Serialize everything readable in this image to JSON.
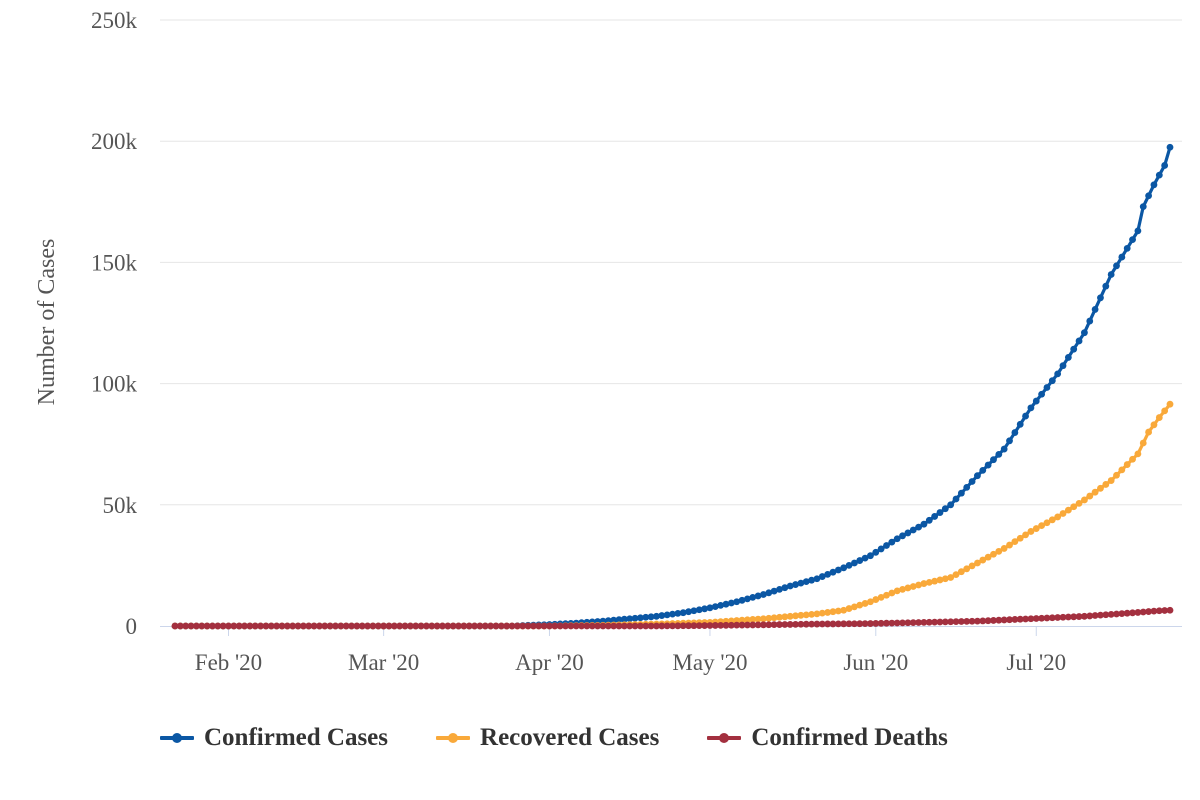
{
  "chart_data": {
    "type": "line",
    "title": "",
    "xlabel": "",
    "ylabel": "Number of Cases",
    "ylim": [
      0,
      250000
    ],
    "y_ticks": [
      0,
      50000,
      100000,
      150000,
      200000,
      250000
    ],
    "y_tick_labels": [
      "0",
      "50k",
      "100k",
      "150k",
      "200k",
      "250k"
    ],
    "x_start": "2020-01-22",
    "x_end": "2020-07-21",
    "x_ticks": [
      {
        "day": 10,
        "label": "Feb '20"
      },
      {
        "day": 39,
        "label": "Mar '20"
      },
      {
        "day": 70,
        "label": "Apr '20"
      },
      {
        "day": 100,
        "label": "May '20"
      },
      {
        "day": 131,
        "label": "Jun '20"
      },
      {
        "day": 161,
        "label": "Jul '20"
      }
    ],
    "grid": true,
    "legend_position": "bottom",
    "series": [
      {
        "name": "Confirmed Cases",
        "color": "#0b57a4",
        "keypoints": [
          [
            0,
            0
          ],
          [
            63,
            0
          ],
          [
            65,
            200
          ],
          [
            70,
            600
          ],
          [
            75,
            1200
          ],
          [
            80,
            2000
          ],
          [
            85,
            3000
          ],
          [
            90,
            4000
          ],
          [
            95,
            5500
          ],
          [
            100,
            7500
          ],
          [
            105,
            10000
          ],
          [
            110,
            13000
          ],
          [
            115,
            16500
          ],
          [
            120,
            19500
          ],
          [
            125,
            24000
          ],
          [
            130,
            29000
          ],
          [
            135,
            36000
          ],
          [
            140,
            42000
          ],
          [
            145,
            50000
          ],
          [
            150,
            62000
          ],
          [
            155,
            73000
          ],
          [
            160,
            90000
          ],
          [
            165,
            104000
          ],
          [
            170,
            121000
          ],
          [
            175,
            145000
          ],
          [
            180,
            163000
          ],
          [
            185,
            190000
          ],
          [
            181,
            173000
          ],
          [
            183,
            182000
          ],
          [
            186,
            197500
          ]
        ]
      },
      {
        "name": "Recovered Cases",
        "color": "#f9a93a",
        "keypoints": [
          [
            0,
            0
          ],
          [
            70,
            0
          ],
          [
            80,
            300
          ],
          [
            90,
            800
          ],
          [
            100,
            1500
          ],
          [
            110,
            3000
          ],
          [
            115,
            4000
          ],
          [
            120,
            5000
          ],
          [
            125,
            6500
          ],
          [
            130,
            10000
          ],
          [
            135,
            14500
          ],
          [
            140,
            17500
          ],
          [
            145,
            20000
          ],
          [
            150,
            26000
          ],
          [
            155,
            32000
          ],
          [
            160,
            39000
          ],
          [
            165,
            45000
          ],
          [
            170,
            52000
          ],
          [
            175,
            60000
          ],
          [
            180,
            71000
          ],
          [
            182,
            80000
          ],
          [
            184,
            86000
          ],
          [
            186,
            91500
          ]
        ]
      },
      {
        "name": "Confirmed Deaths",
        "color": "#a3303f",
        "keypoints": [
          [
            0,
            0
          ],
          [
            90,
            0
          ],
          [
            100,
            200
          ],
          [
            110,
            500
          ],
          [
            120,
            800
          ],
          [
            130,
            1000
          ],
          [
            140,
            1500
          ],
          [
            150,
            2000
          ],
          [
            155,
            2500
          ],
          [
            160,
            3000
          ],
          [
            165,
            3500
          ],
          [
            170,
            4000
          ],
          [
            175,
            4800
          ],
          [
            180,
            5600
          ],
          [
            184,
            6300
          ],
          [
            186,
            6500
          ]
        ]
      }
    ]
  }
}
